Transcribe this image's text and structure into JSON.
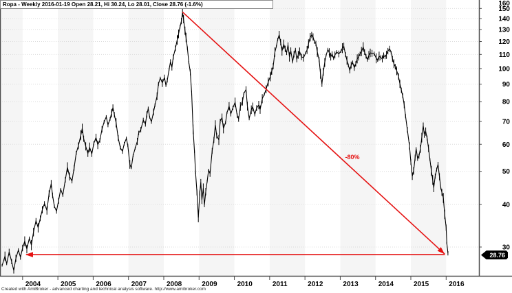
{
  "title": "Ropa - Weekly 2016-01-19 Open 28.21, Hi 30.24, Lo 28.01, Close 28.76 (-1.6%)",
  "footer": "Created with AmiBroker - advanced charting and technical analysis software. http://www.amibroker.com",
  "price_tag": "28.76",
  "colors": {
    "bar": "#000000",
    "annotation_red": "#e51212",
    "band_gray": "#f5f5f5",
    "grid": "#dcdcdc",
    "axis": "#4a4a4a",
    "tick_text": "#000000"
  },
  "chart_data": {
    "type": "line",
    "symbol": "Ropa",
    "interval": "Weekly",
    "last_date": "2016-01-19",
    "ohlc": {
      "open": 28.21,
      "hi": 30.24,
      "lo": 28.01,
      "close": 28.76,
      "change_pct": -1.6
    },
    "yscale": "log",
    "ylim": [
      24.7,
      158.8
    ],
    "xlim": [
      2003.36,
      2016.93
    ],
    "y_ticks": [
      160,
      150,
      140,
      130,
      120,
      110,
      100,
      90,
      80,
      70,
      60,
      50,
      40,
      30
    ],
    "x_ticks": [
      2004,
      2005,
      2006,
      2007,
      2008,
      2009,
      2010,
      2011,
      2012,
      2013,
      2014,
      2015,
      2016
    ],
    "grid": "dotted-horizontal",
    "year_shading": "odd-years-gray",
    "legend_position": "none",
    "annotations": {
      "decline_label": "-80%",
      "decline_label_pos": [
        2013.08,
        54.5
      ],
      "trendline_down": {
        "from": [
          2008.53,
          146.5
        ],
        "to": [
          2015.96,
          28.6
        ]
      },
      "support_arrow": {
        "level": 28.5,
        "from_x": 2004.1,
        "to_x": 2015.96
      }
    },
    "points": [
      [
        2003.42,
        26.5
      ],
      [
        2003.5,
        28.2
      ],
      [
        2003.55,
        26.8
      ],
      [
        2003.62,
        29.0
      ],
      [
        2003.69,
        27.2
      ],
      [
        2003.75,
        25.6
      ],
      [
        2003.81,
        27.8
      ],
      [
        2003.88,
        29.4
      ],
      [
        2003.94,
        28.0
      ],
      [
        2004.0,
        29.8
      ],
      [
        2004.06,
        31.2
      ],
      [
        2004.12,
        29.6
      ],
      [
        2004.19,
        31.8
      ],
      [
        2004.25,
        30.4
      ],
      [
        2004.31,
        33.2
      ],
      [
        2004.38,
        35.8
      ],
      [
        2004.44,
        34.2
      ],
      [
        2004.5,
        36.4
      ],
      [
        2004.56,
        38.6
      ],
      [
        2004.62,
        40.2
      ],
      [
        2004.69,
        38.4
      ],
      [
        2004.75,
        43.0
      ],
      [
        2004.81,
        46.0
      ],
      [
        2004.85,
        42.5
      ],
      [
        2004.9,
        39.5
      ],
      [
        2004.96,
        38.2
      ],
      [
        2005.02,
        41.0
      ],
      [
        2005.08,
        44.3
      ],
      [
        2005.14,
        42.6
      ],
      [
        2005.21,
        47.2
      ],
      [
        2005.27,
        51.4
      ],
      [
        2005.33,
        48.3
      ],
      [
        2005.4,
        46.8
      ],
      [
        2005.46,
        51.2
      ],
      [
        2005.52,
        56.6
      ],
      [
        2005.58,
        59.4
      ],
      [
        2005.65,
        63.8
      ],
      [
        2005.69,
        66.8
      ],
      [
        2005.73,
        62.3
      ],
      [
        2005.79,
        59.2
      ],
      [
        2005.85,
        56.4
      ],
      [
        2005.9,
        58.8
      ],
      [
        2005.96,
        56.2
      ],
      [
        2006.02,
        60.4
      ],
      [
        2006.08,
        62.8
      ],
      [
        2006.13,
        59.8
      ],
      [
        2006.19,
        61.6
      ],
      [
        2006.25,
        66.4
      ],
      [
        2006.31,
        69.8
      ],
      [
        2006.37,
        72.2
      ],
      [
        2006.42,
        68.4
      ],
      [
        2006.48,
        71.2
      ],
      [
        2006.52,
        74.0
      ],
      [
        2006.56,
        76.8
      ],
      [
        2006.6,
        73.2
      ],
      [
        2006.65,
        69.4
      ],
      [
        2006.71,
        62.6
      ],
      [
        2006.77,
        58.6
      ],
      [
        2006.83,
        57.2
      ],
      [
        2006.88,
        60.2
      ],
      [
        2006.94,
        62.4
      ],
      [
        2006.98,
        59.6
      ],
      [
        2007.04,
        52.4
      ],
      [
        2007.08,
        51.2
      ],
      [
        2007.13,
        55.6
      ],
      [
        2007.19,
        58.4
      ],
      [
        2007.25,
        61.2
      ],
      [
        2007.29,
        64.8
      ],
      [
        2007.35,
        66.2
      ],
      [
        2007.42,
        70.6
      ],
      [
        2007.48,
        68.8
      ],
      [
        2007.52,
        73.4
      ],
      [
        2007.56,
        76.4
      ],
      [
        2007.6,
        72.0
      ],
      [
        2007.65,
        69.8
      ],
      [
        2007.71,
        74.6
      ],
      [
        2007.75,
        78.2
      ],
      [
        2007.81,
        83.0
      ],
      [
        2007.85,
        90.2
      ],
      [
        2007.9,
        93.8
      ],
      [
        2007.96,
        90.8
      ],
      [
        2008.02,
        94.2
      ],
      [
        2008.06,
        89.2
      ],
      [
        2008.1,
        92.4
      ],
      [
        2008.15,
        99.4
      ],
      [
        2008.19,
        104.6
      ],
      [
        2008.23,
        100.8
      ],
      [
        2008.27,
        108.2
      ],
      [
        2008.33,
        114.6
      ],
      [
        2008.38,
        121.4
      ],
      [
        2008.42,
        126.4
      ],
      [
        2008.46,
        132.6
      ],
      [
        2008.5,
        137.8
      ],
      [
        2008.53,
        145.8
      ],
      [
        2008.56,
        139.6
      ],
      [
        2008.6,
        129.2
      ],
      [
        2008.63,
        123.4
      ],
      [
        2008.67,
        114.8
      ],
      [
        2008.71,
        104.2
      ],
      [
        2008.75,
        97.6
      ],
      [
        2008.79,
        84.8
      ],
      [
        2008.83,
        66.4
      ],
      [
        2008.87,
        57.2
      ],
      [
        2008.9,
        49.8
      ],
      [
        2008.94,
        43.4
      ],
      [
        2008.98,
        36.6
      ],
      [
        2009.02,
        43.2
      ],
      [
        2009.05,
        46.4
      ],
      [
        2009.08,
        41.2
      ],
      [
        2009.12,
        44.6
      ],
      [
        2009.15,
        39.8
      ],
      [
        2009.19,
        43.6
      ],
      [
        2009.23,
        46.8
      ],
      [
        2009.27,
        50.4
      ],
      [
        2009.31,
        49.2
      ],
      [
        2009.37,
        57.4
      ],
      [
        2009.42,
        61.8
      ],
      [
        2009.46,
        68.4
      ],
      [
        2009.5,
        63.6
      ],
      [
        2009.56,
        61.8
      ],
      [
        2009.6,
        70.2
      ],
      [
        2009.65,
        71.8
      ],
      [
        2009.69,
        66.8
      ],
      [
        2009.75,
        69.4
      ],
      [
        2009.79,
        74.2
      ],
      [
        2009.85,
        77.6
      ],
      [
        2009.9,
        73.6
      ],
      [
        2009.96,
        76.8
      ],
      [
        2010.02,
        79.6
      ],
      [
        2010.08,
        72.8
      ],
      [
        2010.12,
        71.2
      ],
      [
        2010.17,
        77.4
      ],
      [
        2010.23,
        80.2
      ],
      [
        2010.27,
        84.6
      ],
      [
        2010.33,
        86.8
      ],
      [
        2010.37,
        77.6
      ],
      [
        2010.42,
        71.4
      ],
      [
        2010.48,
        75.8
      ],
      [
        2010.52,
        77.2
      ],
      [
        2010.58,
        73.4
      ],
      [
        2010.63,
        76.6
      ],
      [
        2010.69,
        78.2
      ],
      [
        2010.73,
        75.8
      ],
      [
        2010.79,
        81.6
      ],
      [
        2010.85,
        84.2
      ],
      [
        2010.9,
        87.0
      ],
      [
        2010.96,
        91.4
      ],
      [
        2011.02,
        94.8
      ],
      [
        2011.06,
        98.2
      ],
      [
        2011.1,
        101.6
      ],
      [
        2011.15,
        111.8
      ],
      [
        2011.19,
        116.2
      ],
      [
        2011.23,
        121.8
      ],
      [
        2011.27,
        125.6
      ],
      [
        2011.31,
        119.4
      ],
      [
        2011.35,
        112.6
      ],
      [
        2011.4,
        117.8
      ],
      [
        2011.44,
        114.2
      ],
      [
        2011.48,
        111.2
      ],
      [
        2011.52,
        117.4
      ],
      [
        2011.56,
        108.2
      ],
      [
        2011.6,
        112.8
      ],
      [
        2011.65,
        104.6
      ],
      [
        2011.69,
        110.2
      ],
      [
        2011.73,
        113.6
      ],
      [
        2011.77,
        106.4
      ],
      [
        2011.81,
        109.8
      ],
      [
        2011.85,
        112.2
      ],
      [
        2011.9,
        108.2
      ],
      [
        2011.96,
        107.6
      ],
      [
        2012.02,
        111.2
      ],
      [
        2012.06,
        113.4
      ],
      [
        2012.1,
        118.2
      ],
      [
        2012.15,
        123.6
      ],
      [
        2012.19,
        125.4
      ],
      [
        2012.23,
        123.8
      ],
      [
        2012.27,
        119.6
      ],
      [
        2012.31,
        118.4
      ],
      [
        2012.35,
        111.8
      ],
      [
        2012.4,
        106.2
      ],
      [
        2012.44,
        96.6
      ],
      [
        2012.48,
        90.2
      ],
      [
        2012.52,
        97.8
      ],
      [
        2012.56,
        104.2
      ],
      [
        2012.6,
        109.4
      ],
      [
        2012.65,
        113.8
      ],
      [
        2012.69,
        111.2
      ],
      [
        2012.73,
        108.4
      ],
      [
        2012.77,
        110.2
      ],
      [
        2012.81,
        107.2
      ],
      [
        2012.85,
        109.6
      ],
      [
        2012.9,
        111.8
      ],
      [
        2012.96,
        110.4
      ],
      [
        2013.02,
        112.4
      ],
      [
        2013.06,
        114.8
      ],
      [
        2013.1,
        116.2
      ],
      [
        2013.15,
        109.8
      ],
      [
        2013.19,
        105.6
      ],
      [
        2013.23,
        102.2
      ],
      [
        2013.27,
        98.8
      ],
      [
        2013.31,
        102.4
      ],
      [
        2013.35,
        104.2
      ],
      [
        2013.4,
        100.6
      ],
      [
        2013.44,
        103.2
      ],
      [
        2013.48,
        106.8
      ],
      [
        2013.52,
        108.2
      ],
      [
        2013.56,
        110.4
      ],
      [
        2013.6,
        112.2
      ],
      [
        2013.65,
        115.6
      ],
      [
        2013.69,
        111.8
      ],
      [
        2013.73,
        108.6
      ],
      [
        2013.77,
        106.2
      ],
      [
        2013.81,
        109.4
      ],
      [
        2013.85,
        111.2
      ],
      [
        2013.9,
        110.8
      ],
      [
        2013.96,
        110.6
      ],
      [
        2014.02,
        107.2
      ],
      [
        2014.06,
        105.8
      ],
      [
        2014.1,
        108.8
      ],
      [
        2014.15,
        107.6
      ],
      [
        2014.19,
        106.8
      ],
      [
        2014.23,
        109.2
      ],
      [
        2014.27,
        108.2
      ],
      [
        2014.31,
        109.8
      ],
      [
        2014.35,
        112.6
      ],
      [
        2014.4,
        114.2
      ],
      [
        2014.44,
        111.6
      ],
      [
        2014.48,
        106.8
      ],
      [
        2014.52,
        103.4
      ],
      [
        2014.56,
        101.2
      ],
      [
        2014.6,
        98.6
      ],
      [
        2014.65,
        94.8
      ],
      [
        2014.69,
        90.2
      ],
      [
        2014.73,
        86.4
      ],
      [
        2014.77,
        83.2
      ],
      [
        2014.81,
        78.4
      ],
      [
        2014.85,
        72.6
      ],
      [
        2014.9,
        66.2
      ],
      [
        2014.96,
        59.4
      ],
      [
        2015.0,
        53.2
      ],
      [
        2015.04,
        48.4
      ],
      [
        2015.08,
        50.2
      ],
      [
        2015.12,
        54.8
      ],
      [
        2015.15,
        58.2
      ],
      [
        2015.19,
        54.6
      ],
      [
        2015.23,
        55.4
      ],
      [
        2015.27,
        58.2
      ],
      [
        2015.31,
        62.8
      ],
      [
        2015.35,
        68.0
      ],
      [
        2015.38,
        64.2
      ],
      [
        2015.42,
        65.4
      ],
      [
        2015.46,
        62.6
      ],
      [
        2015.5,
        58.4
      ],
      [
        2015.54,
        54.2
      ],
      [
        2015.58,
        50.2
      ],
      [
        2015.62,
        47.2
      ],
      [
        2015.65,
        44.8
      ],
      [
        2015.69,
        48.4
      ],
      [
        2015.73,
        50.6
      ],
      [
        2015.77,
        52.4
      ],
      [
        2015.81,
        48.2
      ],
      [
        2015.85,
        44.6
      ],
      [
        2015.88,
        43.4
      ],
      [
        2015.92,
        41.8
      ],
      [
        2015.96,
        37.4
      ],
      [
        2016.0,
        34.2
      ],
      [
        2016.02,
        30.8
      ],
      [
        2016.05,
        28.76
      ]
    ]
  }
}
